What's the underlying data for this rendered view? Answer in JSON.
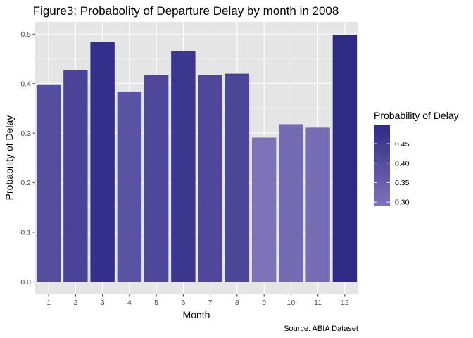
{
  "chart_data": {
    "type": "bar",
    "title": "Figure3: Probabolity of Departure Delay by month in 2008",
    "xlabel": "Month",
    "ylabel": "Probability of Delay",
    "caption": "Source: ABIA Dataset",
    "categories": [
      "1",
      "2",
      "3",
      "4",
      "5",
      "6",
      "7",
      "8",
      "9",
      "10",
      "11",
      "12"
    ],
    "values": [
      0.397,
      0.427,
      0.484,
      0.384,
      0.417,
      0.466,
      0.417,
      0.42,
      0.291,
      0.318,
      0.311,
      0.499
    ],
    "ylim": [
      0,
      0.5
    ],
    "yticks": [
      0.0,
      0.1,
      0.2,
      0.3,
      0.4,
      0.5
    ],
    "ytick_labels": [
      "0.0",
      "0.1",
      "0.2",
      "0.3",
      "0.4",
      "0.5"
    ],
    "grid": true,
    "legend": {
      "title": "Probability of Delay",
      "position": "right",
      "range": [
        0.291,
        0.499
      ],
      "ticks": [
        0.45,
        0.4,
        0.35,
        0.3
      ],
      "tick_labels": [
        "0.45",
        "0.40",
        "0.35",
        "0.30"
      ],
      "color_low": "#7e73b9",
      "color_high": "#2e2a86"
    },
    "panel_background": "#e5e5e5",
    "grid_color": "#ffffff"
  }
}
